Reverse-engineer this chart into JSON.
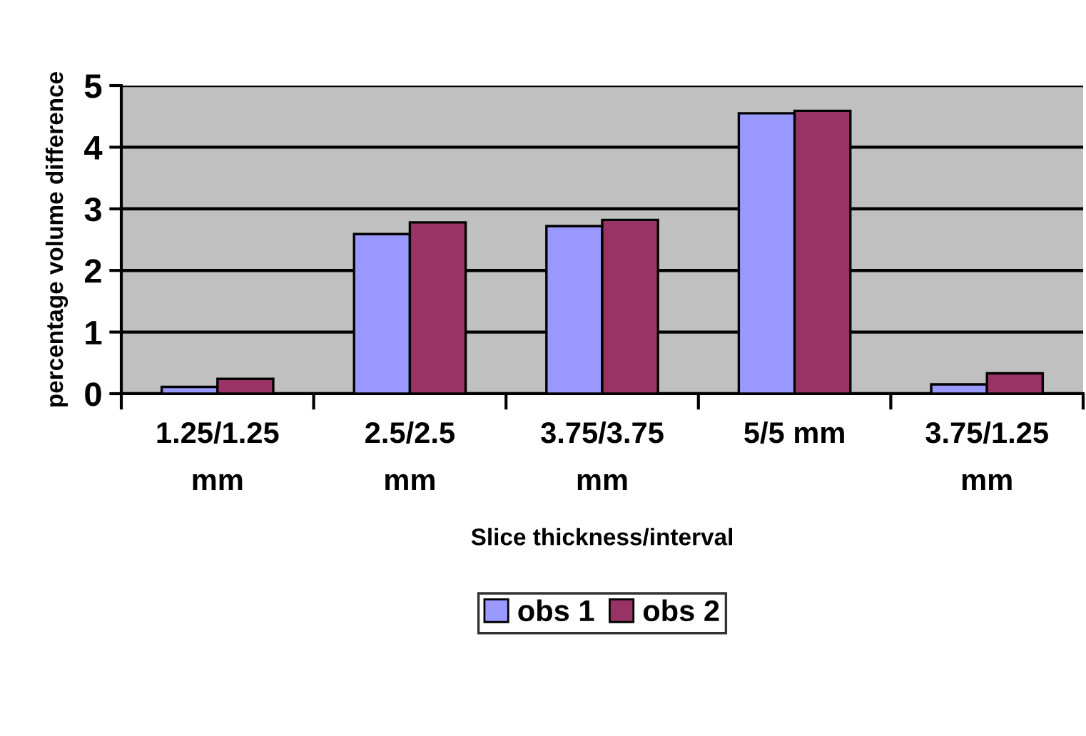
{
  "chart_data": {
    "type": "bar",
    "xlabel": "Slice thickness/interval",
    "ylabel": "percentage volume difference",
    "categories": [
      "1.25/1.25\nmm",
      "2.5/2.5\nmm",
      "3.75/3.75\nmm",
      "5/5 mm",
      "3.75/1.25\nmm"
    ],
    "series": [
      {
        "name": "obs 1",
        "color": "#9999ff",
        "values": [
          0.11,
          2.59,
          2.72,
          4.55,
          0.15
        ]
      },
      {
        "name": "obs 2",
        "color": "#993366",
        "values": [
          0.24,
          2.78,
          2.82,
          4.59,
          0.33
        ]
      }
    ],
    "ylim": [
      0,
      5
    ],
    "yticks": [
      0,
      1,
      2,
      3,
      4,
      5
    ],
    "grid": "y",
    "legend": "bottom"
  }
}
